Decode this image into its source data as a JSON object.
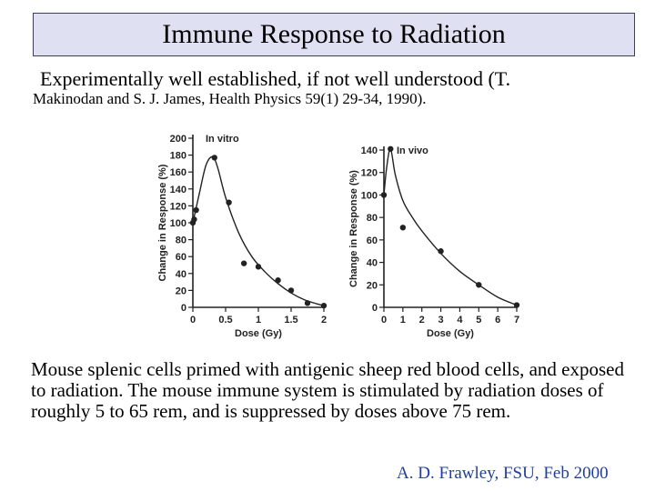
{
  "title": "Immune Response to Radiation",
  "subtitle_line1": "Experimentally well established, if not well understood (T.",
  "subtitle_line2": "Makinodan and S. J. James, Health Physics 59(1)  29-34, 1990).",
  "caption": "Mouse splenic cells primed with antigenic sheep red blood cells, and exposed to radiation. The mouse immune system is stimulated by radiation doses of roughly 5 to 65 rem, and is suppressed by doses above 75 rem.",
  "credit": "A. D. Frawley, FSU, Feb 2000",
  "colors": {
    "title_bg": "#dfe1f2",
    "title_border": "#3b3d5c",
    "credit": "#1f3fa0",
    "ink": "#222222"
  },
  "chart_data": [
    {
      "type": "line",
      "title": "In vitro",
      "xlabel": "Dose (Gy)",
      "ylabel": "Change in Response (%)",
      "xlim": [
        0,
        2
      ],
      "ylim": [
        0,
        200
      ],
      "xticks": [
        0,
        0.5,
        1,
        1.5,
        2
      ],
      "xtick_labels": [
        "0",
        "0.5",
        "1",
        "1.5",
        "2"
      ],
      "yticks": [
        0,
        20,
        40,
        60,
        80,
        100,
        120,
        140,
        160,
        180,
        200
      ],
      "points": [
        {
          "x": 0,
          "y": 100
        },
        {
          "x": 0.02,
          "y": 104
        },
        {
          "x": 0.05,
          "y": 115
        },
        {
          "x": 0.33,
          "y": 177
        },
        {
          "x": 0.55,
          "y": 124
        },
        {
          "x": 0.78,
          "y": 52
        },
        {
          "x": 1.0,
          "y": 48
        },
        {
          "x": 1.3,
          "y": 32
        },
        {
          "x": 1.5,
          "y": 20
        },
        {
          "x": 1.75,
          "y": 5
        },
        {
          "x": 2.0,
          "y": 2
        }
      ],
      "curve": [
        {
          "x": 0,
          "y": 100
        },
        {
          "x": 0.1,
          "y": 135
        },
        {
          "x": 0.2,
          "y": 168
        },
        {
          "x": 0.3,
          "y": 178
        },
        {
          "x": 0.38,
          "y": 165
        },
        {
          "x": 0.5,
          "y": 130
        },
        {
          "x": 0.7,
          "y": 88
        },
        {
          "x": 0.9,
          "y": 60
        },
        {
          "x": 1.1,
          "y": 42
        },
        {
          "x": 1.3,
          "y": 28
        },
        {
          "x": 1.5,
          "y": 17
        },
        {
          "x": 1.7,
          "y": 9
        },
        {
          "x": 1.9,
          "y": 4
        },
        {
          "x": 2.0,
          "y": 2
        }
      ]
    },
    {
      "type": "line",
      "title": "In vivo",
      "xlabel": "Dose (Gy)",
      "ylabel": "Change in Response (%)",
      "xlim": [
        0,
        7
      ],
      "ylim": [
        0,
        140
      ],
      "xticks": [
        0,
        1,
        2,
        3,
        4,
        5,
        6,
        7
      ],
      "xtick_labels": [
        "0",
        "1",
        "2",
        "3",
        "4",
        "5",
        "6",
        "7"
      ],
      "yticks": [
        0,
        20,
        40,
        60,
        80,
        100,
        120,
        140
      ],
      "points": [
        {
          "x": 0,
          "y": 100
        },
        {
          "x": 0.35,
          "y": 141
        },
        {
          "x": 1.0,
          "y": 71
        },
        {
          "x": 3.0,
          "y": 50
        },
        {
          "x": 5.0,
          "y": 20
        },
        {
          "x": 7.0,
          "y": 2
        }
      ],
      "curve": [
        {
          "x": 0,
          "y": 100
        },
        {
          "x": 0.15,
          "y": 125
        },
        {
          "x": 0.35,
          "y": 141
        },
        {
          "x": 0.6,
          "y": 118
        },
        {
          "x": 1.0,
          "y": 95
        },
        {
          "x": 1.5,
          "y": 80
        },
        {
          "x": 2.0,
          "y": 68
        },
        {
          "x": 3.0,
          "y": 48
        },
        {
          "x": 4.0,
          "y": 32
        },
        {
          "x": 5.0,
          "y": 20
        },
        {
          "x": 6.0,
          "y": 9
        },
        {
          "x": 7.0,
          "y": 2
        }
      ]
    }
  ]
}
